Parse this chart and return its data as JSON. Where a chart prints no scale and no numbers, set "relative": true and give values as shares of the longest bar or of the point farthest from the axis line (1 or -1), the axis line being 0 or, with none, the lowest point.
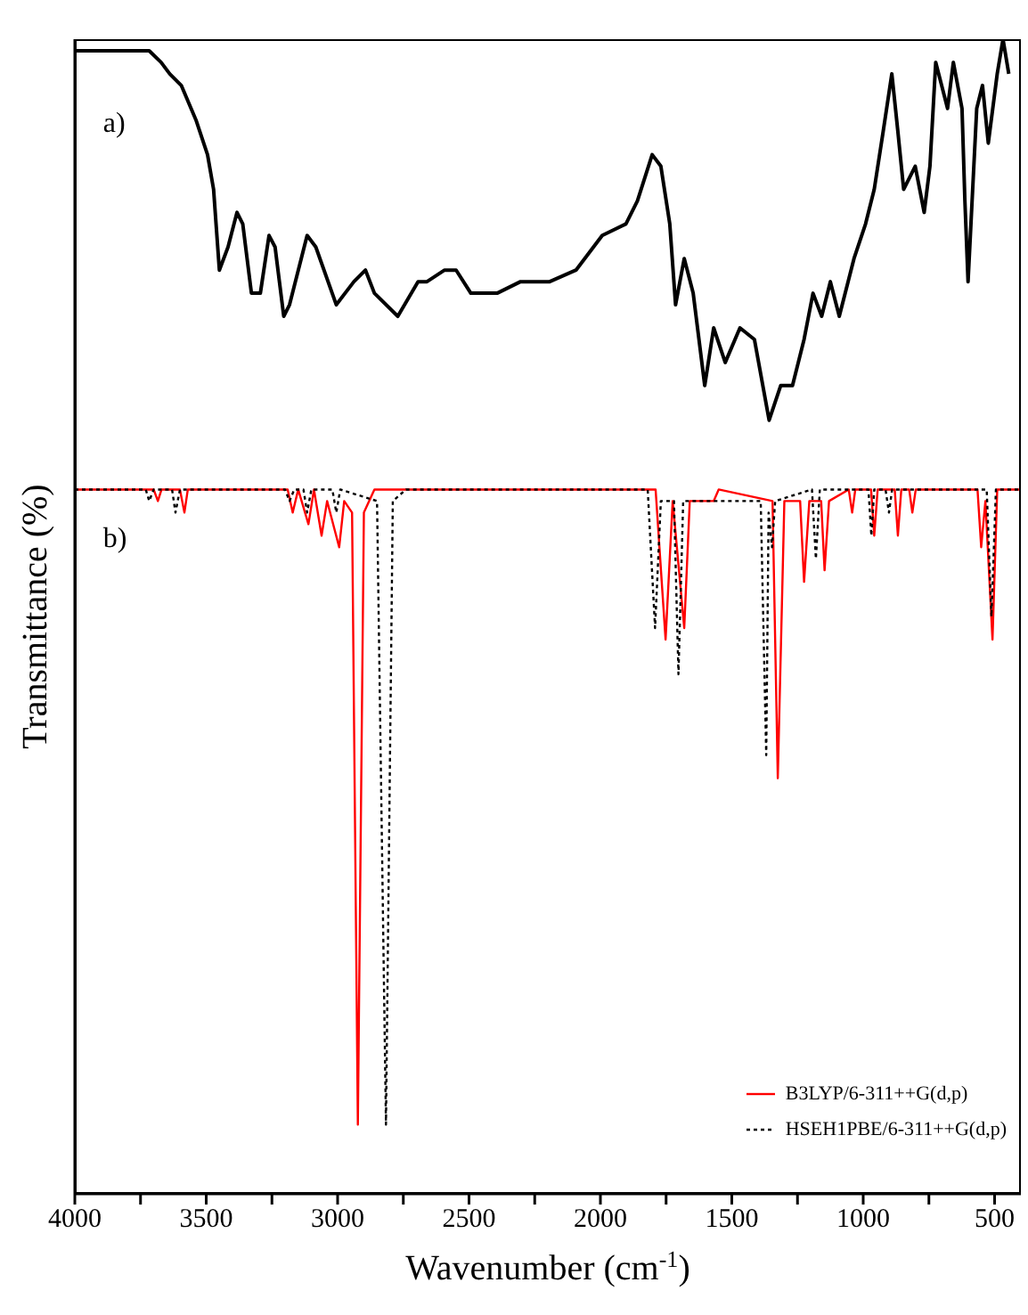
{
  "chart_data": {
    "type": "line",
    "relative": true,
    "xlabel": "Wavenumber (cm$^{-1}$)",
    "ylabel": "Transmittance (%)",
    "annotations": [
      "a)",
      "b)"
    ],
    "xlim": [
      4000,
      400
    ],
    "xticks": [
      4000,
      {
        "value": 3750,
        "label": null
      },
      3500,
      {
        "value": 3250,
        "label": null
      },
      3000,
      {
        "value": 2750,
        "label": null
      },
      2500,
      {
        "value": 2250,
        "label": null
      },
      2000,
      {
        "value": 1750,
        "label": null
      },
      1500,
      {
        "value": 1250,
        "label": null
      },
      1000,
      {
        "value": 750,
        "label": null
      },
      500
    ],
    "legend": "bottom right",
    "marker": "none",
    "series": [
      {
        "color": "#000000",
        "line_style": "solid",
        "x": [
          3995,
          3929,
          3895,
          3862,
          3795,
          3762,
          3717,
          3672,
          3639,
          3595,
          3539,
          3495,
          3472,
          3450,
          3417,
          3383,
          3361,
          3328,
          3294,
          3261,
          3238,
          3205,
          3183,
          3116,
          3083,
          3005,
          2938,
          2894,
          2860,
          2771,
          2694,
          2660,
          2593,
          2549,
          2493,
          2393,
          2304,
          2193,
          2093,
          1993,
          1903,
          1859,
          1803,
          1770,
          1736,
          1714,
          1681,
          1647,
          1603,
          1569,
          1525,
          1469,
          1414,
          1358,
          1314,
          1269,
          1225,
          1191,
          1158,
          1125,
          1091,
          1035,
          991,
          958,
          924,
          891,
          868,
          846,
          802,
          768,
          746,
          724,
          679,
          657,
          624,
          613,
          601,
          568,
          546,
          524,
          490,
          468,
          446
        ],
        "values": [
          0.99,
          0.99,
          0.99,
          0.99,
          0.99,
          0.99,
          0.99,
          0.98,
          0.97,
          0.96,
          0.93,
          0.9,
          0.87,
          0.8,
          0.82,
          0.85,
          0.84,
          0.78,
          0.78,
          0.83,
          0.82,
          0.76,
          0.77,
          0.83,
          0.82,
          0.77,
          0.79,
          0.8,
          0.78,
          0.76,
          0.79,
          0.79,
          0.8,
          0.8,
          0.78,
          0.78,
          0.79,
          0.79,
          0.8,
          0.83,
          0.84,
          0.86,
          0.9,
          0.89,
          0.84,
          0.77,
          0.81,
          0.78,
          0.7,
          0.75,
          0.72,
          0.75,
          0.74,
          0.67,
          0.7,
          0.7,
          0.74,
          0.78,
          0.76,
          0.79,
          0.76,
          0.81,
          0.84,
          0.87,
          0.92,
          0.97,
          0.92,
          0.87,
          0.89,
          0.85,
          0.89,
          0.98,
          0.94,
          0.98,
          0.94,
          0.86,
          0.79,
          0.94,
          0.96,
          0.91,
          0.97,
          1.0,
          0.97
        ]
      },
      {
        "name": "B3LYP/6-311++G(d,p)",
        "color": "#ff0000",
        "line_style": "solid",
        "x": [
          4000,
          3700,
          3684,
          3670,
          3600,
          3583,
          3570,
          3190,
          3171,
          3150,
          3111,
          3090,
          3061,
          3040,
          2994,
          2975,
          2945,
          2923,
          2900,
          2860,
          1790,
          1752,
          1725,
          1681,
          1660,
          1580,
          1569,
          1550,
          1345,
          1325,
          1300,
          1240,
          1225,
          1205,
          1160,
          1147,
          1130,
          1055,
          1042,
          1030,
          970,
          958,
          945,
          880,
          868,
          855,
          825,
          813,
          800,
          565,
          551,
          535,
          508,
          490,
          400
        ],
        "values": [
          0.61,
          0.61,
          0.6,
          0.61,
          0.61,
          0.59,
          0.61,
          0.61,
          0.59,
          0.61,
          0.58,
          0.61,
          0.57,
          0.6,
          0.56,
          0.6,
          0.59,
          0.06,
          0.59,
          0.61,
          0.61,
          0.48,
          0.6,
          0.49,
          0.6,
          0.6,
          0.6,
          0.61,
          0.6,
          0.36,
          0.6,
          0.6,
          0.53,
          0.6,
          0.6,
          0.54,
          0.6,
          0.61,
          0.59,
          0.61,
          0.61,
          0.57,
          0.61,
          0.61,
          0.57,
          0.61,
          0.61,
          0.59,
          0.61,
          0.61,
          0.56,
          0.6,
          0.48,
          0.61,
          0.61
        ]
      },
      {
        "name": "HSEH1PBE/6-311++G(d,p)",
        "color": "#000000",
        "line_style": "dotted",
        "x": [
          4000,
          3730,
          3717,
          3700,
          3630,
          3617,
          3600,
          3200,
          3183,
          3165,
          3130,
          3116,
          3100,
          3020,
          3005,
          2990,
          2850,
          2816,
          2790,
          2740,
          1820,
          1792,
          1770,
          1720,
          1703,
          1685,
          1390,
          1369,
          1360,
          1347,
          1335,
          1195,
          1180,
          1165,
          980,
          969,
          958,
          915,
          902,
          890,
          530,
          512,
          495,
          400
        ],
        "values": [
          0.61,
          0.61,
          0.6,
          0.61,
          0.61,
          0.59,
          0.61,
          0.61,
          0.6,
          0.61,
          0.61,
          0.59,
          0.61,
          0.61,
          0.59,
          0.61,
          0.6,
          0.06,
          0.6,
          0.61,
          0.61,
          0.49,
          0.6,
          0.6,
          0.45,
          0.6,
          0.6,
          0.38,
          0.59,
          0.56,
          0.6,
          0.61,
          0.55,
          0.61,
          0.61,
          0.57,
          0.61,
          0.61,
          0.59,
          0.61,
          0.61,
          0.5,
          0.61,
          0.61
        ]
      }
    ]
  }
}
